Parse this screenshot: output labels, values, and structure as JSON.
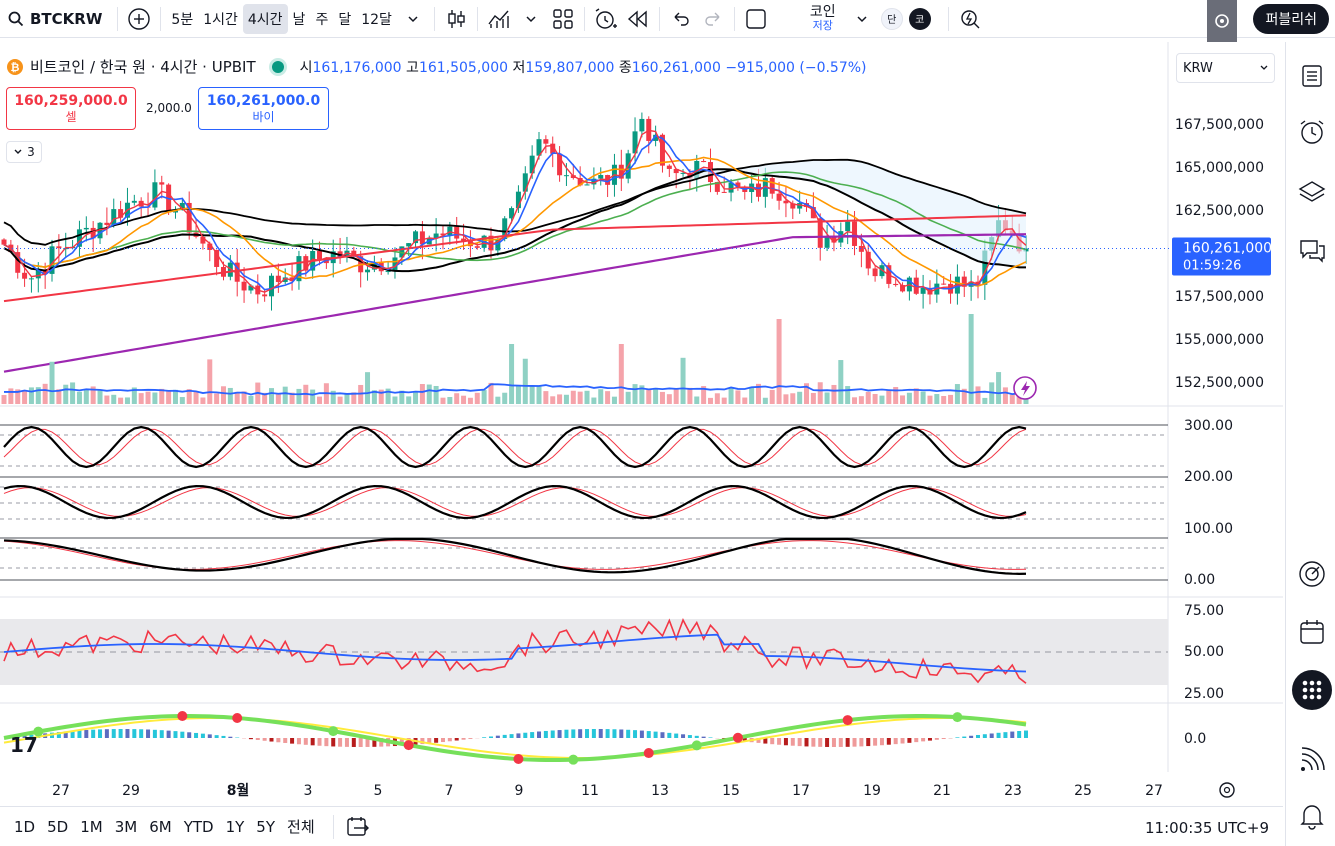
{
  "toolbar": {
    "symbol": "BTCKRW",
    "intervals": [
      "5분",
      "1시간",
      "4시간",
      "날",
      "주",
      "달",
      "12달"
    ],
    "active_interval": "4시간",
    "coin_label": "코인",
    "save_label": "저장",
    "badge_single": "단",
    "badge_coin": "코",
    "publish_label": "퍼블리쉬"
  },
  "legend": {
    "title": "비트코인 / 한국 원 · 4시간 · UPBIT",
    "open_label": "시",
    "open": "161,176,000",
    "high_label": "고",
    "high": "161,505,000",
    "low_label": "저",
    "low": "159,807,000",
    "close_label": "종",
    "close": "160,261,000",
    "change": "−915,000 (−0.57%)"
  },
  "trade": {
    "sell_price": "160,259,000.0",
    "sell_label": "셀",
    "spread": "2,000.0",
    "buy_price": "160,261,000.0",
    "buy_label": "바이",
    "indicators_count": "3"
  },
  "currency_select": "KRW",
  "price_axis": {
    "ticks": [
      "167,500,000",
      "165,000,000",
      "162,500,000",
      "157,500,000",
      "155,000,000",
      "152,500,000"
    ],
    "last_price": "160,261,000",
    "countdown": "01:59:26"
  },
  "osc_axis": [
    "300.00",
    "200.00",
    "100.00",
    "0.00"
  ],
  "rsi_axis": [
    "75.00",
    "50.00",
    "25.00"
  ],
  "macd_axis": [
    "0.0"
  ],
  "time_axis": [
    "27",
    "29",
    "8월",
    "3",
    "5",
    "7",
    "9",
    "11",
    "13",
    "15",
    "17",
    "19",
    "21",
    "23",
    "25",
    "27"
  ],
  "bottom": {
    "ranges": [
      "1D",
      "5D",
      "1M",
      "3M",
      "6M",
      "YTD",
      "1Y",
      "5Y",
      "전체"
    ],
    "clock": "11:00:35 UTC+9"
  },
  "colors": {
    "up": "#089981",
    "down": "#f23645",
    "accent": "#2962ff",
    "ma_black": "#000000",
    "ma_green": "#4caf50",
    "ma_orange": "#ff9800",
    "ma_red": "#f23645",
    "ma_purple": "#9c27b0",
    "ma_blue": "#2962ff"
  },
  "chart_data": {
    "type": "candlestick",
    "symbol": "BTCKRW",
    "interval": "4시간",
    "x_labels": [
      "27",
      "29",
      "8월",
      "3",
      "5",
      "7",
      "9",
      "11",
      "13",
      "15",
      "17",
      "19",
      "21",
      "23"
    ],
    "close_path": [
      160500000,
      158500000,
      160000000,
      161000000,
      162000000,
      163000000,
      163500000,
      162200000,
      160000000,
      158500000,
      157800000,
      158800000,
      159500000,
      160000000,
      159400000,
      159600000,
      160500000,
      161200000,
      160800000,
      160600000,
      162300000,
      166500000,
      164800000,
      164000000,
      164500000,
      168000000,
      164300000,
      165000000,
      164200000,
      163300000,
      164000000,
      163200000,
      160700000,
      161900000,
      159000000,
      158600000,
      158100000,
      158400000,
      157900000,
      162000000,
      160261000
    ],
    "last": 160261000,
    "ylim": [
      151500000,
      169500000
    ]
  }
}
